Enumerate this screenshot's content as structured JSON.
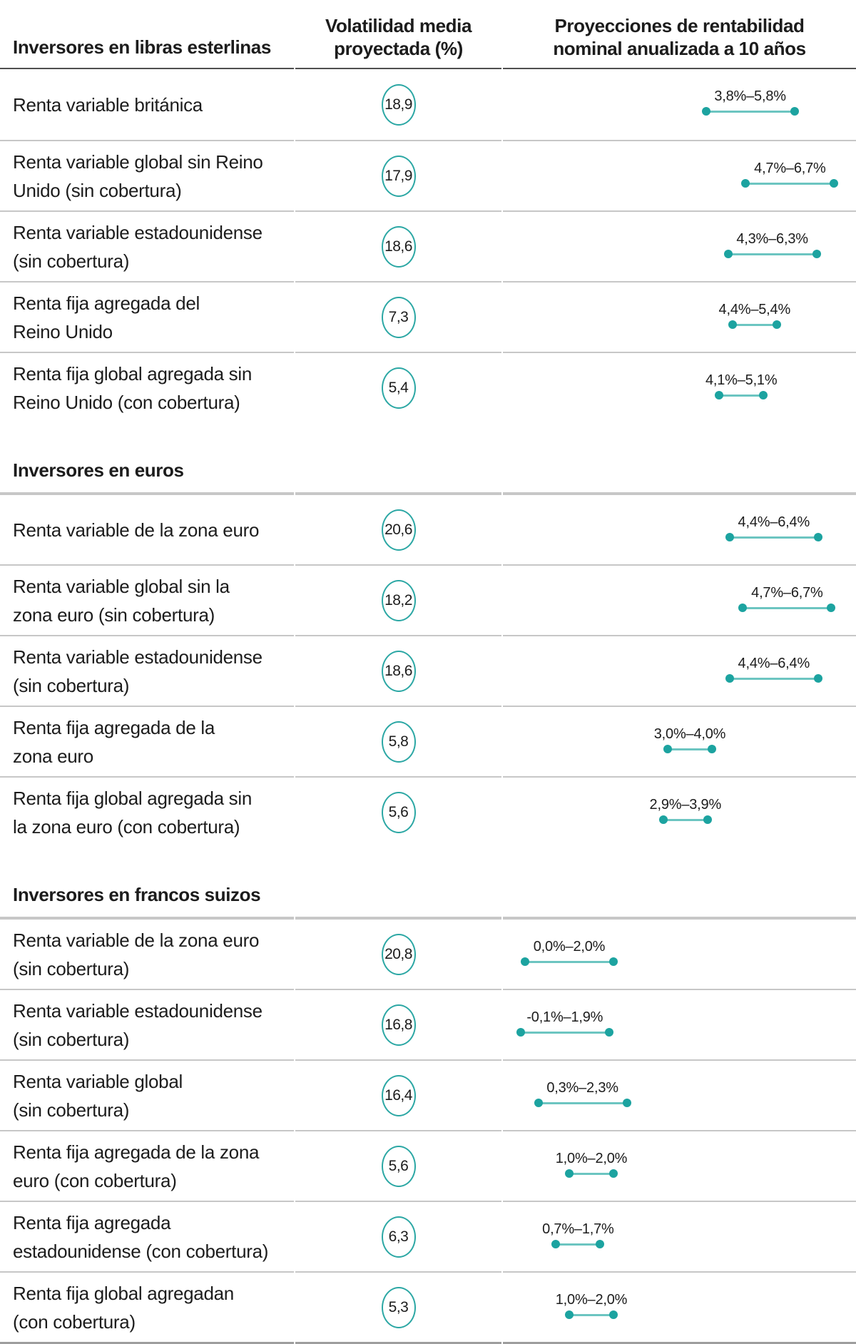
{
  "header": {
    "col1": "Inversores en libras esterlinas",
    "col2_lines": [
      "Volatilidad media",
      "proyectada (%)"
    ],
    "col3_lines": [
      "Proyecciones de rentabilidad",
      "nominal anualizada a 10 años"
    ]
  },
  "colors": {
    "accent_teal": "#1ca3a0",
    "range_line_teal": "#6cc5c1",
    "text": "#1c1c1c",
    "row_divider": "#c7c7c7",
    "header_divider": "#4f4f4f",
    "bottom_border": "#9d9d9d"
  },
  "chart_data": {
    "type": "table",
    "title": "Proyecciones de rentabilidad nominal anualizada a 10 años",
    "columns": [
      "Inversores en libras esterlinas",
      "Volatilidad media proyectada (%)",
      "Proyecciones de rentabilidad nominal anualizada a 10 años"
    ],
    "x_unit": "%",
    "sections": [
      {
        "title": "Inversores en libras esterlinas",
        "rows": [
          {
            "lines": [
              "Renta variable británica"
            ],
            "volatility": "18,9",
            "min": 3.8,
            "max": 5.8,
            "range_label": "3,8%–5,8%"
          },
          {
            "lines": [
              "Renta variable global sin Reino",
              "Unido (sin cobertura)"
            ],
            "volatility": "17,9",
            "min": 4.7,
            "max": 6.7,
            "range_label": "4,7%–6,7%"
          },
          {
            "lines": [
              "Renta variable estadounidense",
              "(sin cobertura)"
            ],
            "volatility": "18,6",
            "min": 4.3,
            "max": 6.3,
            "range_label": "4,3%–6,3%"
          },
          {
            "lines": [
              "Renta fija agregada del",
              "Reino Unido"
            ],
            "volatility": "7,3",
            "min": 4.4,
            "max": 5.4,
            "range_label": "4,4%–5,4%"
          },
          {
            "lines": [
              "Renta fija global agregada sin",
              "Reino Unido (con cobertura)"
            ],
            "volatility": "5,4",
            "min": 4.1,
            "max": 5.1,
            "range_label": "4,1%–5,1%"
          }
        ]
      },
      {
        "title": "Inversores en euros",
        "rows": [
          {
            "lines": [
              "Renta variable de la zona euro"
            ],
            "volatility": "20,6",
            "min": 4.4,
            "max": 6.4,
            "range_label": "4,4%–6,4%"
          },
          {
            "lines": [
              "Renta variable global sin la",
              "zona euro (sin cobertura)"
            ],
            "volatility": "18,2",
            "min": 4.7,
            "max": 6.7,
            "range_label": "4,7%–6,7%"
          },
          {
            "lines": [
              "Renta variable estadounidense",
              "(sin cobertura)"
            ],
            "volatility": "18,6",
            "min": 4.4,
            "max": 6.4,
            "range_label": "4,4%–6,4%"
          },
          {
            "lines": [
              "Renta fija agregada de la",
              "zona euro"
            ],
            "volatility": "5,8",
            "min": 3.0,
            "max": 4.0,
            "range_label": "3,0%–4,0%"
          },
          {
            "lines": [
              "Renta fija global agregada sin",
              "la zona euro (con cobertura)"
            ],
            "volatility": "5,6",
            "min": 2.9,
            "max": 3.9,
            "range_label": "2,9%–3,9%"
          }
        ]
      },
      {
        "title": "Inversores en francos suizos",
        "rows": [
          {
            "lines": [
              "Renta variable de la zona euro",
              "(sin cobertura)"
            ],
            "volatility": "20,8",
            "min": 0.0,
            "max": 2.0,
            "range_label": "0,0%–2,0%"
          },
          {
            "lines": [
              "Renta variable estadounidense",
              "(sin cobertura)"
            ],
            "volatility": "16,8",
            "min": -0.1,
            "max": 1.9,
            "range_label": "-0,1%–1,9%"
          },
          {
            "lines": [
              "Renta variable global",
              "(sin cobertura)"
            ],
            "volatility": "16,4",
            "min": 0.3,
            "max": 2.3,
            "range_label": "0,3%–2,3%"
          },
          {
            "lines": [
              "Renta fija agregada de la zona",
              "euro (con cobertura)"
            ],
            "volatility": "5,6",
            "min": 1.0,
            "max": 2.0,
            "range_label": "1,0%–2,0%"
          },
          {
            "lines": [
              "Renta fija agregada",
              "estadounidense (con cobertura)"
            ],
            "volatility": "6,3",
            "min": 0.7,
            "max": 1.7,
            "range_label": "0,7%–1,7%"
          },
          {
            "lines": [
              "Renta fija global agregadan",
              "(con cobertura)"
            ],
            "volatility": "5,3",
            "min": 1.0,
            "max": 2.0,
            "range_label": "1,0%–2,0%"
          }
        ]
      }
    ]
  }
}
